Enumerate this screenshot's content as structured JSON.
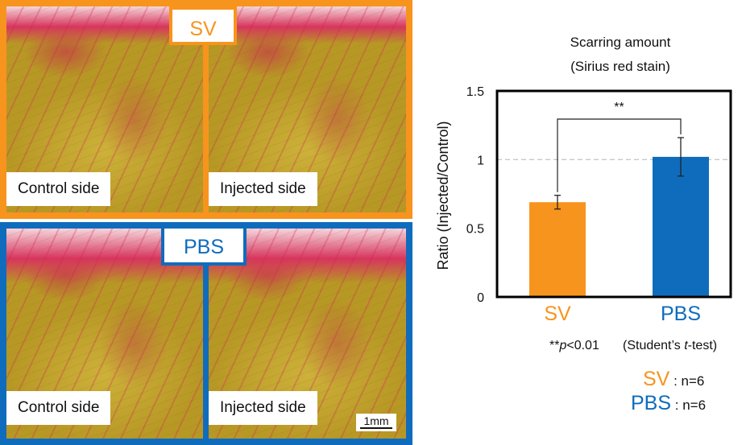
{
  "colors": {
    "sv": "#F7941D",
    "pbs": "#0F6CBD",
    "tissue_yellow": "#c8aa35",
    "sirius_red": "#d3305f"
  },
  "micrographs": {
    "sv": {
      "group_label": "SV",
      "left_label": "Control side",
      "right_label": "Injected side"
    },
    "pbs": {
      "group_label": "PBS",
      "left_label": "Control side",
      "right_label": "Injected side"
    },
    "scale_bar_label": "1mm"
  },
  "chart_data": {
    "type": "bar",
    "title": "Scarring amount",
    "subtitle": "(Sirius red stain)",
    "xlabel": "",
    "ylabel": "Ratio (Injected/Control)",
    "categories": [
      "SV",
      "PBS"
    ],
    "values": [
      0.69,
      1.02
    ],
    "errors": [
      0.05,
      0.14
    ],
    "ylim": [
      0,
      1.5
    ],
    "yticks": [
      0,
      0.5,
      1,
      1.5
    ],
    "ytick_labels": [
      "0",
      "0.5",
      "1",
      "1.5"
    ],
    "reference_line": 1,
    "significance": {
      "label": "**",
      "between": [
        "SV",
        "PBS"
      ]
    },
    "grid": false
  },
  "notes": {
    "p_prefix": "**",
    "p_var": "p",
    "p_rest": "<0.01",
    "test_prefix": "(Student’s ",
    "test_var": "t",
    "test_rest": "-test)"
  },
  "sample_sizes": [
    {
      "group": "SV",
      "text": ": n=6"
    },
    {
      "group": "PBS",
      "text": ": n=6"
    }
  ]
}
